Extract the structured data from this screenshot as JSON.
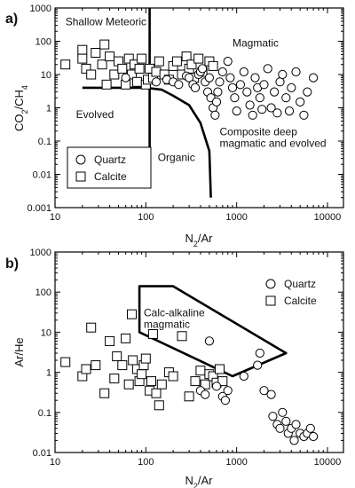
{
  "chart_data": [
    {
      "panel_label": "a)",
      "type": "scatter",
      "xlabel": "N2/Ar",
      "ylabel": "CO2/CH4",
      "xscale": "log",
      "yscale": "log",
      "xlim": [
        10,
        15000
      ],
      "ylim": [
        0.001,
        1000
      ],
      "x_ticks": [
        "10",
        "100",
        "1000",
        "10000"
      ],
      "y_ticks": [
        "0.001",
        "0.01",
        "0.1",
        "1",
        "10",
        "100",
        "1000"
      ],
      "legend": {
        "placement": "lower-left",
        "entries": [
          "Quartz",
          "Calcite"
        ]
      },
      "region_labels": [
        {
          "lines": [
            "Shallow Meteoric"
          ],
          "x": 13,
          "y": 300
        },
        {
          "lines": [
            "Magmatic"
          ],
          "x": 900,
          "y": 70
        },
        {
          "lines": [
            "Evolved"
          ],
          "x": 17,
          "y": 0.5
        },
        {
          "lines": [
            "Organic"
          ],
          "x": 135,
          "y": 0.025
        },
        {
          "lines": [
            "Composite deep",
            "magmatic and evolved"
          ],
          "x": 650,
          "y": 0.15
        }
      ],
      "boundaries": [
        {
          "points": [
            [
              110,
              0.01
            ],
            [
              110,
              1000
            ]
          ]
        },
        {
          "points": [
            [
              20,
              4
            ],
            [
              100,
              4
            ],
            [
              150,
              3.5
            ],
            [
              200,
              2.3
            ],
            [
              300,
              1.2
            ],
            [
              400,
              0.35
            ],
            [
              500,
              0.05
            ],
            [
              520,
              0.002
            ]
          ]
        }
      ],
      "series": [
        {
          "name": "Calcite",
          "marker": "square",
          "points": [
            [
              13,
              20
            ],
            [
              20,
              55
            ],
            [
              20,
              30
            ],
            [
              22,
              15
            ],
            [
              25,
              10
            ],
            [
              28,
              45
            ],
            [
              33,
              20
            ],
            [
              35,
              80
            ],
            [
              37,
              5
            ],
            [
              40,
              35
            ],
            [
              45,
              10
            ],
            [
              50,
              25
            ],
            [
              55,
              15
            ],
            [
              60,
              5
            ],
            [
              65,
              30
            ],
            [
              70,
              10
            ],
            [
              75,
              20
            ],
            [
              80,
              6
            ],
            [
              85,
              15
            ],
            [
              90,
              30
            ],
            [
              100,
              5
            ],
            [
              105,
              7
            ],
            [
              110,
              15
            ],
            [
              120,
              8
            ],
            [
              130,
              12
            ],
            [
              140,
              25
            ],
            [
              160,
              10
            ],
            [
              180,
              7
            ],
            [
              200,
              18
            ],
            [
              220,
              25
            ],
            [
              250,
              10
            ],
            [
              280,
              35
            ],
            [
              300,
              15
            ],
            [
              320,
              20
            ],
            [
              340,
              8
            ],
            [
              380,
              30
            ],
            [
              420,
              12
            ],
            [
              500,
              25
            ],
            [
              550,
              18
            ]
          ]
        },
        {
          "name": "Quartz",
          "marker": "circle",
          "points": [
            [
              60,
              8
            ],
            [
              130,
              6
            ],
            [
              170,
              7
            ],
            [
              200,
              6
            ],
            [
              230,
              5
            ],
            [
              280,
              9
            ],
            [
              300,
              8
            ],
            [
              330,
              5
            ],
            [
              350,
              4
            ],
            [
              380,
              10
            ],
            [
              400,
              12
            ],
            [
              420,
              15
            ],
            [
              450,
              6
            ],
            [
              480,
              3
            ],
            [
              500,
              8
            ],
            [
              520,
              2
            ],
            [
              550,
              1
            ],
            [
              580,
              0.6
            ],
            [
              600,
              1.5
            ],
            [
              620,
              3
            ],
            [
              650,
              6
            ],
            [
              700,
              12
            ],
            [
              800,
              25
            ],
            [
              850,
              8
            ],
            [
              900,
              4
            ],
            [
              950,
              2
            ],
            [
              1000,
              0.8
            ],
            [
              1100,
              5
            ],
            [
              1200,
              12
            ],
            [
              1300,
              3
            ],
            [
              1400,
              1.2
            ],
            [
              1500,
              0.6
            ],
            [
              1600,
              8
            ],
            [
              1700,
              4
            ],
            [
              1800,
              2
            ],
            [
              1900,
              0.9
            ],
            [
              2000,
              5
            ],
            [
              2200,
              15
            ],
            [
              2400,
              1
            ],
            [
              2600,
              3
            ],
            [
              2800,
              0.7
            ],
            [
              3000,
              6
            ],
            [
              3200,
              10
            ],
            [
              3500,
              2
            ],
            [
              3800,
              0.8
            ],
            [
              4000,
              4
            ],
            [
              4500,
              12
            ],
            [
              5000,
              1.5
            ],
            [
              5500,
              0.6
            ],
            [
              6000,
              3
            ],
            [
              7000,
              8
            ]
          ]
        }
      ]
    },
    {
      "panel_label": "b)",
      "type": "scatter",
      "xlabel": "N2/Ar",
      "ylabel": "Ar/He",
      "xscale": "log",
      "yscale": "log",
      "xlim": [
        10,
        15000
      ],
      "ylim": [
        0.01,
        1000
      ],
      "x_ticks": [
        "10",
        "100",
        "1000",
        "10000"
      ],
      "y_ticks": [
        "0.01",
        "0.1",
        "1",
        "10",
        "100",
        "1000"
      ],
      "legend": {
        "placement": "upper-right",
        "entries": [
          "Quartz",
          "Calcite"
        ]
      },
      "region_labels": [
        {
          "lines": [
            "Calc-alkaline",
            "magmatic"
          ],
          "x": 95,
          "y": 25
        }
      ],
      "boundaries": [
        {
          "closed": true,
          "points": [
            [
              85,
              140
            ],
            [
              200,
              140
            ],
            [
              3500,
              3
            ],
            [
              900,
              0.8
            ],
            [
              85,
              10
            ]
          ]
        }
      ],
      "series": [
        {
          "name": "Calcite",
          "marker": "square",
          "points": [
            [
              13,
              1.8
            ],
            [
              20,
              0.8
            ],
            [
              22,
              1.2
            ],
            [
              25,
              13
            ],
            [
              28,
              1.5
            ],
            [
              35,
              0.3
            ],
            [
              40,
              6
            ],
            [
              45,
              0.7
            ],
            [
              48,
              2.5
            ],
            [
              55,
              1.5
            ],
            [
              60,
              7
            ],
            [
              65,
              0.5
            ],
            [
              70,
              28
            ],
            [
              72,
              2
            ],
            [
              80,
              1.2
            ],
            [
              85,
              0.6
            ],
            [
              90,
              0.9
            ],
            [
              95,
              1.5
            ],
            [
              100,
              2.2
            ],
            [
              110,
              0.35
            ],
            [
              115,
              0.6
            ],
            [
              120,
              9
            ],
            [
              130,
              0.3
            ],
            [
              140,
              0.15
            ],
            [
              150,
              0.5
            ],
            [
              180,
              1
            ],
            [
              200,
              0.8
            ],
            [
              250,
              8
            ],
            [
              300,
              0.25
            ],
            [
              350,
              0.6
            ],
            [
              400,
              1.1
            ],
            [
              450,
              0.5
            ],
            [
              500,
              0.9
            ],
            [
              550,
              0.8
            ],
            [
              600,
              0.55
            ],
            [
              650,
              1.2
            ],
            [
              700,
              0.6
            ]
          ]
        },
        {
          "name": "Quartz",
          "marker": "circle",
          "points": [
            [
              400,
              0.35
            ],
            [
              450,
              0.28
            ],
            [
              500,
              6
            ],
            [
              600,
              0.45
            ],
            [
              700,
              0.25
            ],
            [
              750,
              0.2
            ],
            [
              800,
              0.35
            ],
            [
              1200,
              0.8
            ],
            [
              1700,
              1.5
            ],
            [
              1800,
              3
            ],
            [
              2000,
              0.35
            ],
            [
              2400,
              0.28
            ],
            [
              2500,
              0.08
            ],
            [
              2800,
              0.05
            ],
            [
              3000,
              0.04
            ],
            [
              3200,
              0.1
            ],
            [
              3500,
              0.06
            ],
            [
              3700,
              0.03
            ],
            [
              4000,
              0.04
            ],
            [
              4300,
              0.02
            ],
            [
              4500,
              0.05
            ],
            [
              5000,
              0.03
            ],
            [
              5500,
              0.025
            ],
            [
              6000,
              0.03
            ],
            [
              6500,
              0.04
            ],
            [
              7000,
              0.025
            ]
          ]
        }
      ]
    }
  ]
}
